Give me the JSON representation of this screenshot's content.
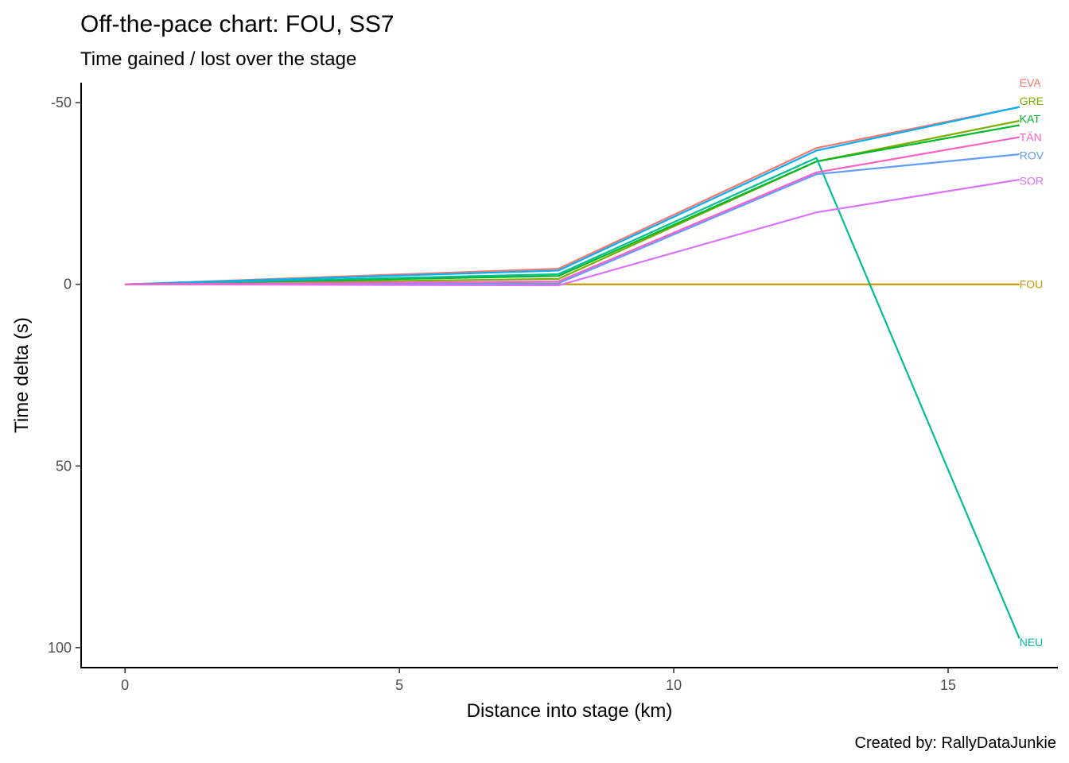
{
  "chart_data": {
    "type": "line",
    "title": "Off-the-pace chart: FOU, SS7",
    "subtitle": "Time gained / lost over the stage",
    "xlabel": "Distance into stage (km)",
    "ylabel": "Time delta (s)",
    "caption": "Created by: RallyDataJunkie",
    "xlim": [
      -0.8,
      17.0
    ],
    "ylim": [
      -55.5,
      105.5
    ],
    "y_reversed": true,
    "grid": false,
    "x_ticks": [
      0,
      5,
      10,
      15
    ],
    "y_ticks": [
      -50,
      0,
      50,
      100
    ],
    "x_tick_labels": [
      "0",
      "5",
      "10",
      "15"
    ],
    "y_tick_labels": [
      "-50",
      "0",
      "50",
      "100"
    ],
    "x": [
      0,
      7.9,
      12.6,
      16.3
    ],
    "series": [
      {
        "name": "EVA",
        "color": "#F8766D",
        "values": [
          0,
          -4.3,
          -37.5,
          -48.8
        ]
      },
      {
        "name": "FOU",
        "color": "#C49A00",
        "values": [
          0,
          0,
          0,
          0
        ]
      },
      {
        "name": "GRE",
        "color": "#7CAE00",
        "values": [
          0,
          -1.5,
          -33.8,
          -45.0
        ]
      },
      {
        "name": "KAT",
        "color": "#00B82A",
        "values": [
          0,
          -2.3,
          -33.8,
          -43.8
        ]
      },
      {
        "name": "NEU",
        "color": "#00BE95",
        "values": [
          0,
          -2.8,
          -34.8,
          97.5
        ]
      },
      {
        "name": "",
        "color": "#00B0F6",
        "values": [
          0,
          -3.8,
          -36.8,
          -48.8
        ]
      },
      {
        "name": "ROV",
        "color": "#619CFF",
        "values": [
          0,
          -0.3,
          -30.3,
          -35.8
        ]
      },
      {
        "name": "SOR",
        "color": "#DB72FB",
        "values": [
          0,
          0.3,
          -19.8,
          -28.8
        ]
      },
      {
        "name": "TÄN",
        "color": "#FF61C3",
        "values": [
          0,
          -0.8,
          -30.8,
          -40.5
        ]
      }
    ],
    "label_positions": {
      "EVA": -55.5,
      "GRE": -50.5,
      "KAT": -45.5,
      "TÄN": -40.5,
      "ROV": -35.5,
      "SOR": -28.5,
      "FOU": 0,
      "NEU": 98.5
    }
  }
}
